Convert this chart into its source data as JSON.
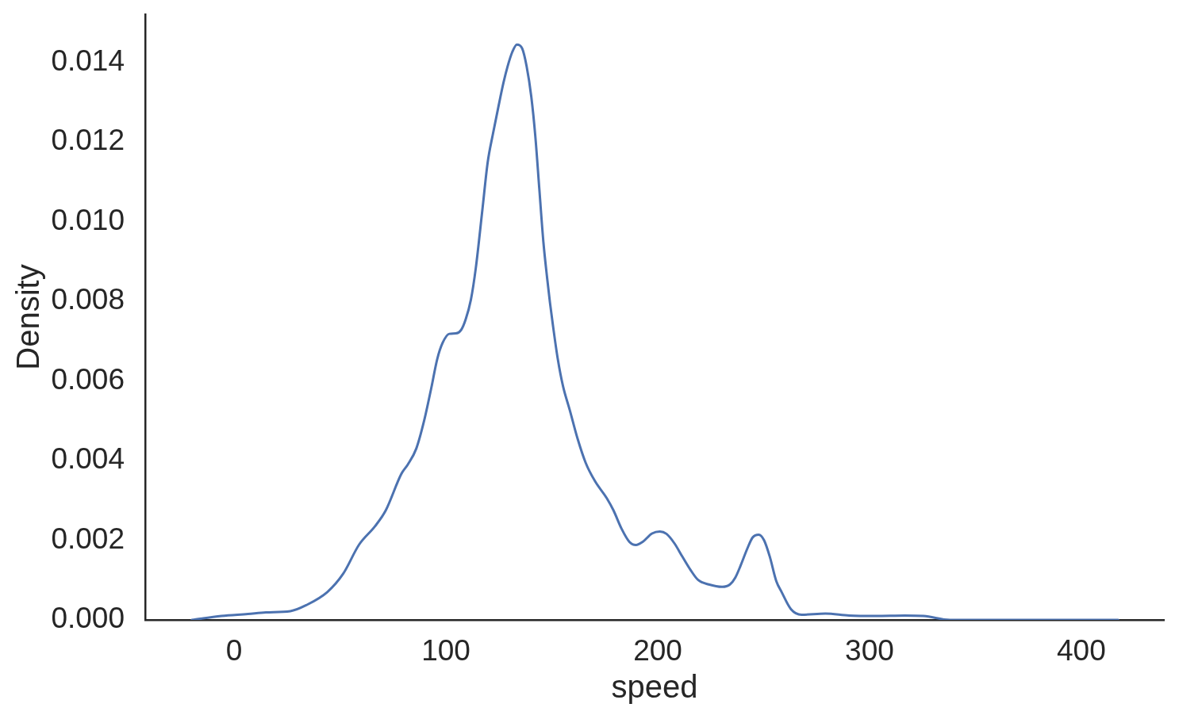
{
  "chart_data": {
    "type": "line",
    "xlabel": "speed",
    "ylabel": "Density",
    "x": [
      -20,
      -6,
      6.5,
      15,
      26.5,
      34,
      44,
      51.5,
      59,
      66.5,
      71.6,
      79,
      82,
      86,
      89.7,
      93,
      95.9,
      98.4,
      101.6,
      104.7,
      107.2,
      109.3,
      111.8,
      114.1,
      117.2,
      119.7,
      122.2,
      124.7,
      127.2,
      129.1,
      131.3,
      133.5,
      136,
      138.1,
      140.3,
      142.2,
      144.1,
      146,
      147.8,
      149.1,
      150.4,
      152.8,
      155.3,
      158.5,
      162.2,
      166,
      170.4,
      176,
      179.1,
      182.9,
      186.6,
      189.7,
      192.9,
      197.3,
      201,
      204.1,
      207.9,
      211.6,
      215.4,
      219.1,
      224.1,
      230.4,
      234.1,
      236.6,
      239.1,
      242.3,
      244.8,
      247.7,
      250.2,
      252.9,
      256,
      258.5,
      262.9,
      267.9,
      279.2,
      290.4,
      302.9,
      316.7,
      325.5,
      338,
      363,
      417.4
    ],
    "series": [
      {
        "color": "#4c72b0",
        "values": [
          0,
          0.0001,
          0.00015,
          0.00019,
          0.00022,
          0.00037,
          0.0007,
          0.00116,
          0.00189,
          0.00235,
          0.00275,
          0.00367,
          0.0039,
          0.0043,
          0.005,
          0.0058,
          0.00655,
          0.00695,
          0.00718,
          0.00719,
          0.00728,
          0.00754,
          0.00804,
          0.00883,
          0.01029,
          0.01148,
          0.0122,
          0.01286,
          0.01349,
          0.01389,
          0.01425,
          0.01444,
          0.01434,
          0.01389,
          0.01313,
          0.01214,
          0.01081,
          0.00949,
          0.00857,
          0.00797,
          0.00744,
          0.00655,
          0.00586,
          0.00526,
          0.00454,
          0.00394,
          0.00348,
          0.00305,
          0.00275,
          0.00229,
          0.00196,
          0.00188,
          0.00196,
          0.00217,
          0.00222,
          0.00216,
          0.00192,
          0.00159,
          0.00126,
          0.001,
          0.00089,
          0.00083,
          0.00089,
          0.00106,
          0.00136,
          0.00179,
          0.00207,
          0.00214,
          0.002,
          0.00159,
          0.00097,
          0.0007,
          0.00027,
          0.00013,
          0.00016,
          0.00011,
          0.0001,
          0.00011,
          0.0001,
          0,
          0,
          0
        ]
      }
    ],
    "xlim": [
      -42,
      439
    ],
    "xticks": [
      0,
      100,
      200,
      300,
      400
    ],
    "ylim": [
      0,
      0.0152
    ],
    "yticks": [
      {
        "value": 0,
        "label": "0.000"
      },
      {
        "value": 0.002,
        "label": "0.002"
      },
      {
        "value": 0.004,
        "label": "0.004"
      },
      {
        "value": 0.006,
        "label": "0.006"
      },
      {
        "value": 0.008,
        "label": "0.008"
      },
      {
        "value": 0.01,
        "label": "0.010"
      },
      {
        "value": 0.012,
        "label": "0.012"
      },
      {
        "value": 0.014,
        "label": "0.014"
      }
    ]
  }
}
